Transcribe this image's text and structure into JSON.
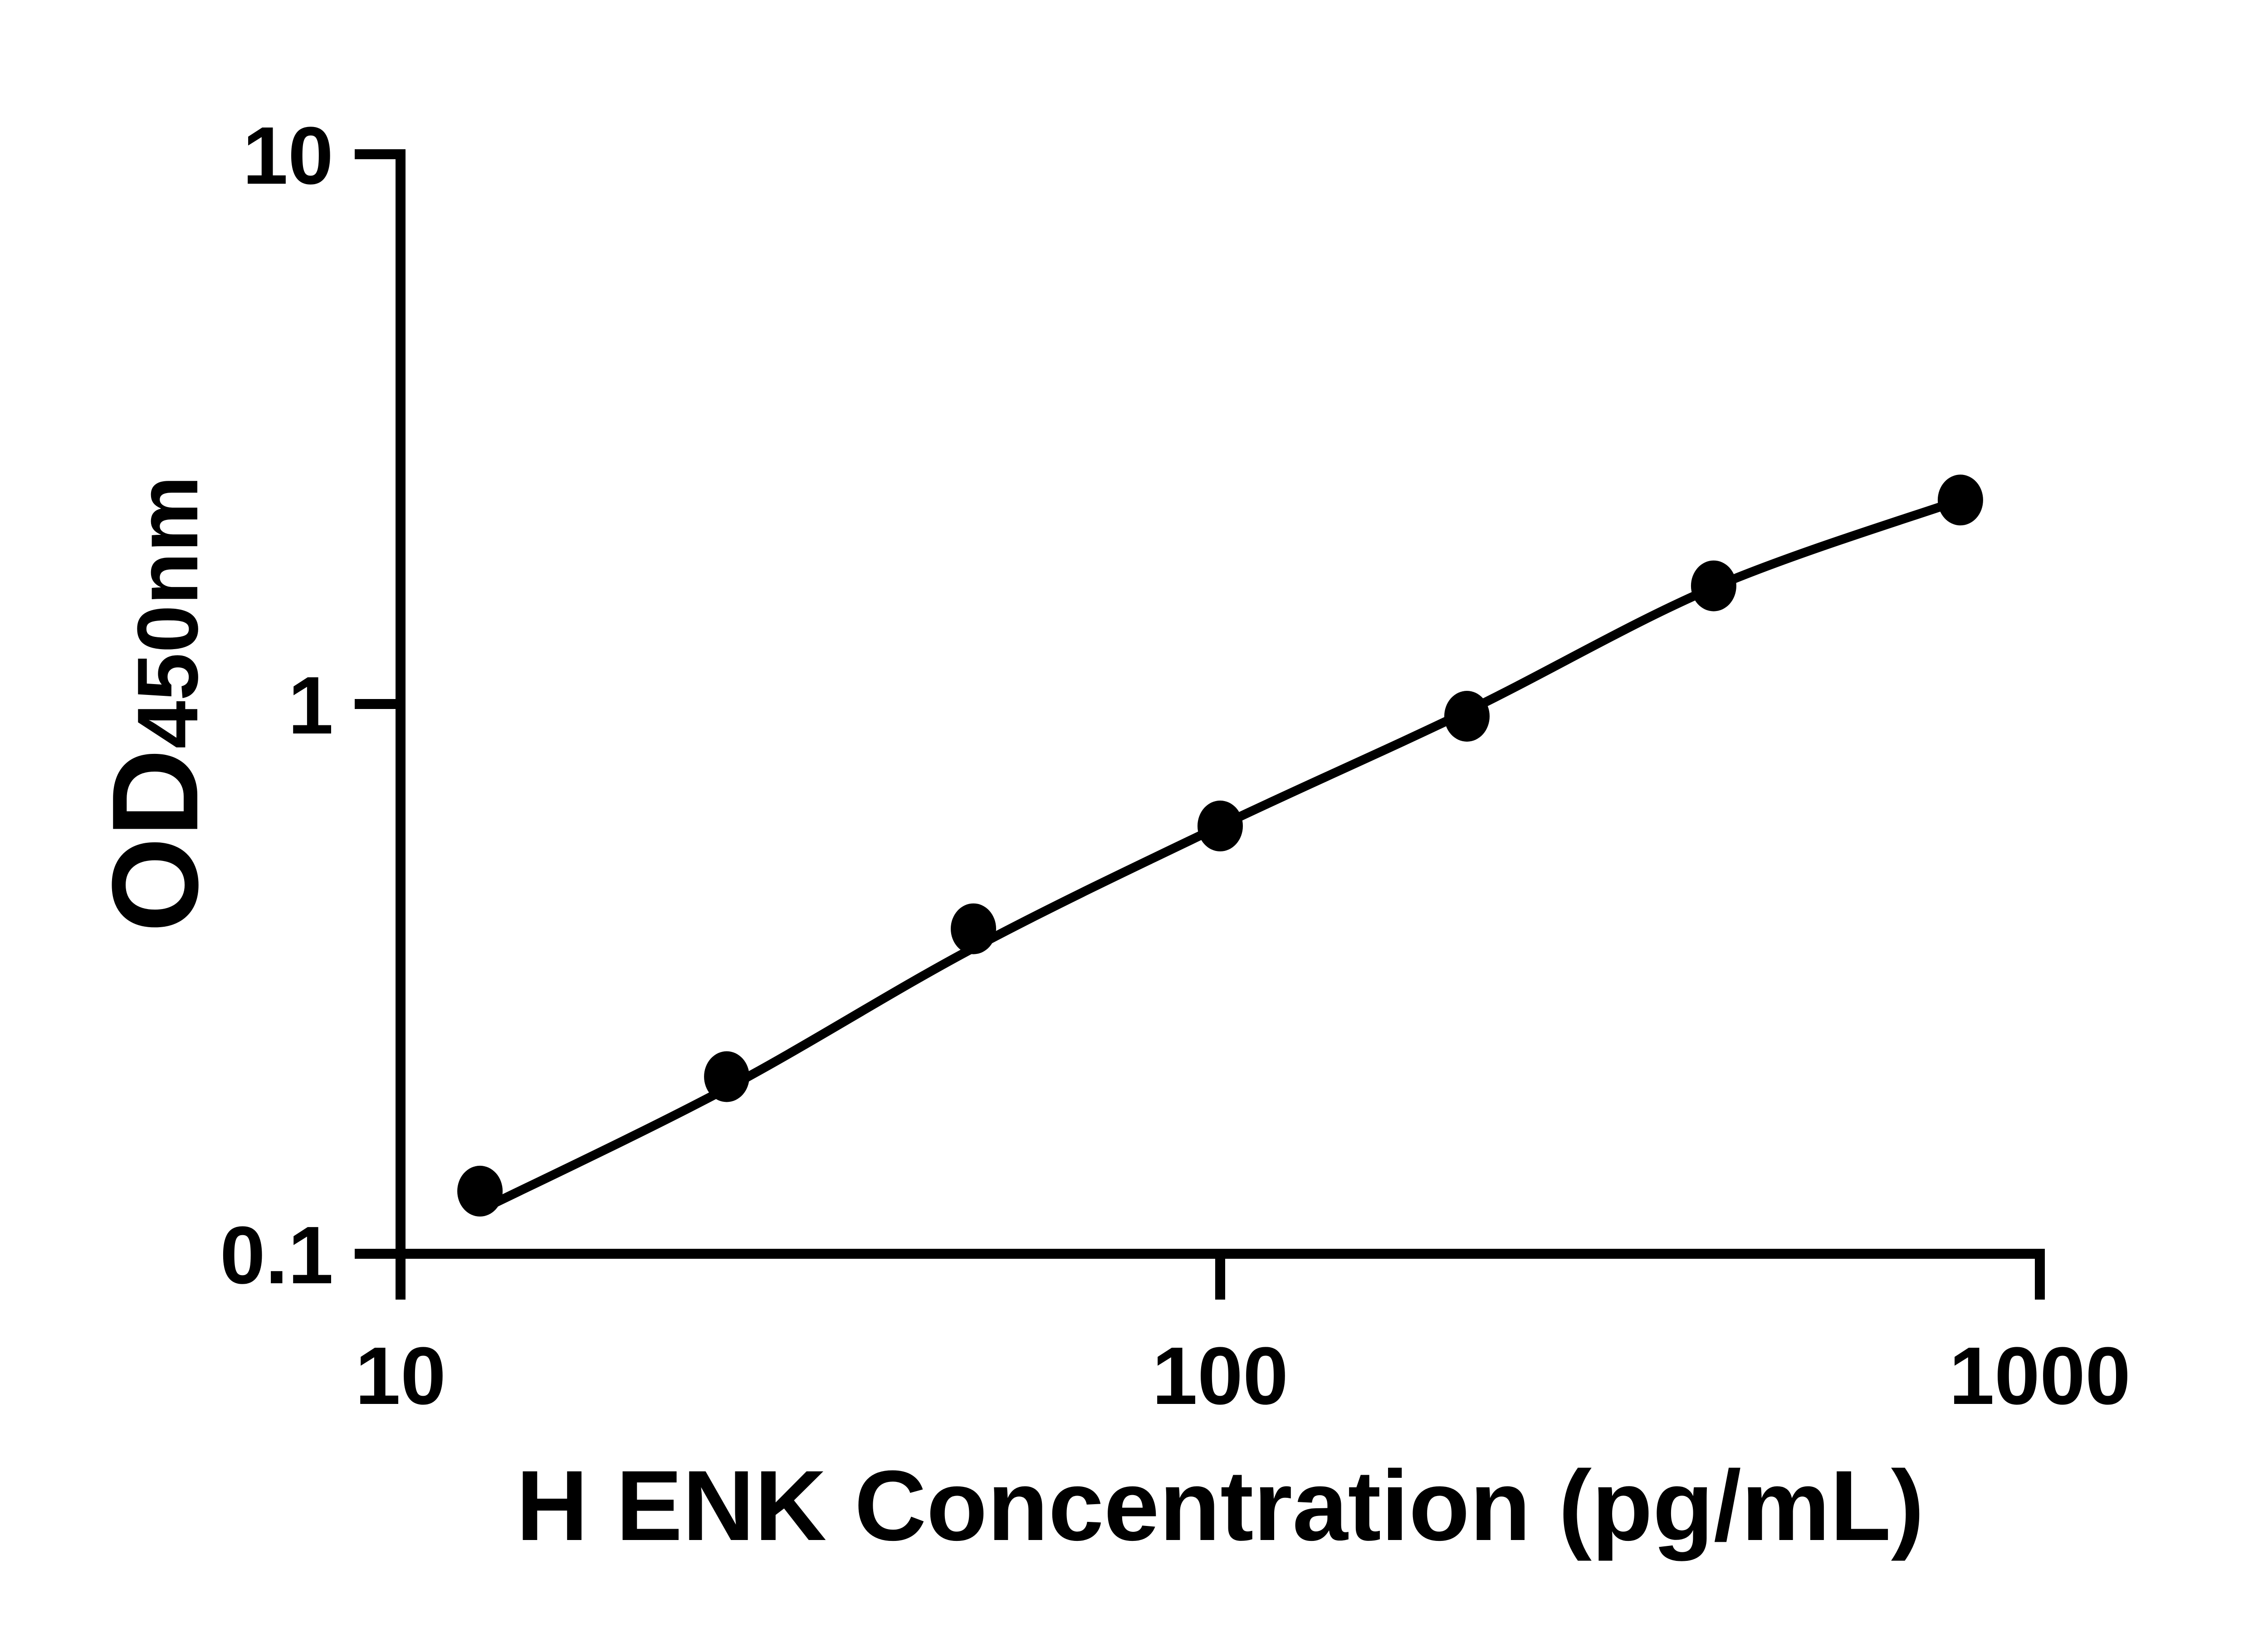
{
  "figure": {
    "background_color": "#ffffff",
    "ink_color": "#000000"
  },
  "chart_data": {
    "type": "scatter",
    "subtype": "elisa-standard-curve-with-fit-line",
    "title": "",
    "xlabel": "H ENK Concentration (pg/mL)",
    "ylabel": "OD450nm",
    "ylabel_main": "OD",
    "ylabel_sub": "450nm",
    "x_scale": "log10",
    "y_scale": "log10",
    "xlim": [
      10,
      1000
    ],
    "ylim": [
      0.1,
      10
    ],
    "grid": false,
    "legend": "none",
    "marker_style": "filled-black-circle",
    "line_style": "solid-black",
    "x_ticks": [
      {
        "value": 10,
        "label": "10"
      },
      {
        "value": 100,
        "label": "100"
      },
      {
        "value": 1000,
        "label": "1000"
      }
    ],
    "y_ticks": [
      {
        "value": 10,
        "label": "10"
      },
      {
        "value": 1,
        "label": "1"
      },
      {
        "value": 0.1,
        "label": "0.1"
      }
    ],
    "series": [
      {
        "points": [
          {
            "x": 12.5,
            "od": 0.13,
            "fit": 0.12
          },
          {
            "x": 25,
            "od": 0.21,
            "fit": 0.2
          },
          {
            "x": 50,
            "od": 0.39,
            "fit": 0.36
          },
          {
            "x": 100,
            "od": 0.6,
            "fit": 0.6
          },
          {
            "x": 200,
            "od": 0.95,
            "fit": 0.97
          },
          {
            "x": 400,
            "od": 1.64,
            "fit": 1.63
          },
          {
            "x": 800,
            "od": 2.35,
            "fit": 2.35
          }
        ]
      }
    ]
  }
}
